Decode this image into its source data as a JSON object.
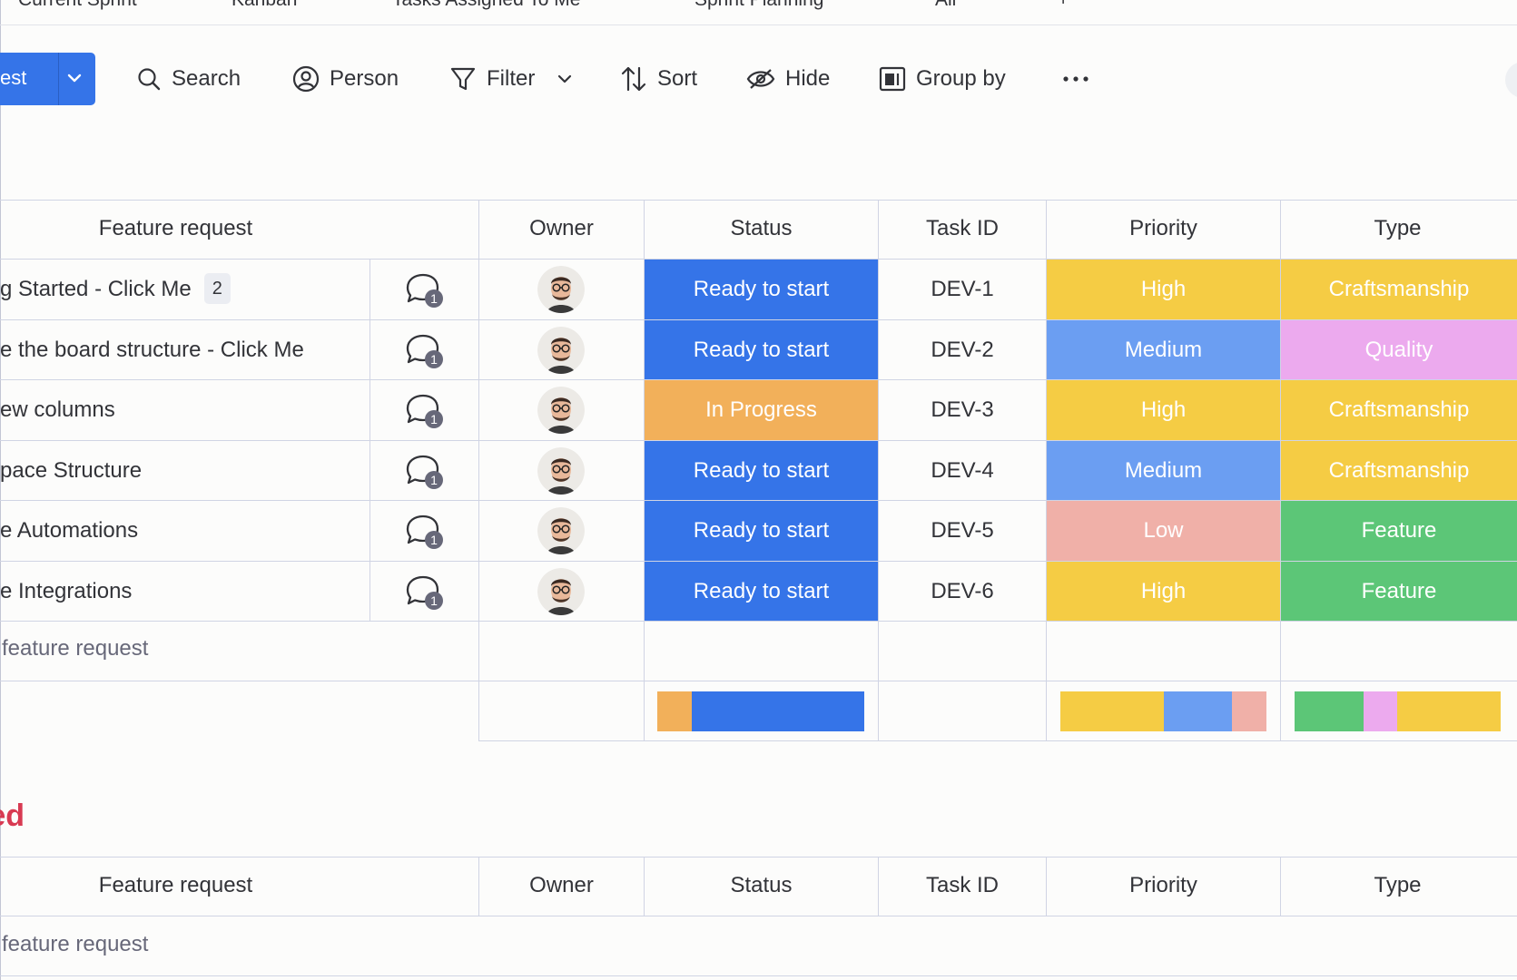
{
  "view_tabs": [
    "Current Sprint",
    "Kanban",
    "Tasks Assigned To Me",
    "Sprint Planning",
    "All",
    "+"
  ],
  "toolbar": {
    "new_item_label": "est",
    "search": "Search",
    "person": "Person",
    "filter": "Filter",
    "sort": "Sort",
    "hide": "Hide",
    "group_by": "Group by"
  },
  "columns": [
    "Feature request",
    "Owner",
    "Status",
    "Task ID",
    "Priority",
    "Type"
  ],
  "colors": {
    "ready": "#3574e8",
    "in_progress": "#f2b05a",
    "high": "#f5cc44",
    "medium": "#6b9ef2",
    "low": "#f0b0a8",
    "craftsmanship": "#f5cc44",
    "quality": "#ecaaee",
    "feature": "#5cc677"
  },
  "rows": [
    {
      "name": "g Started - Click Me",
      "subitems": "2",
      "updates": "1",
      "status": "Ready to start",
      "task_id": "DEV-1",
      "priority": "High",
      "type": "Craftsmanship"
    },
    {
      "name": "e the board structure - Click Me",
      "updates": "1",
      "status": "Ready to start",
      "task_id": "DEV-2",
      "priority": "Medium",
      "type": "Quality"
    },
    {
      "name": "ew columns",
      "updates": "1",
      "status": "In Progress",
      "task_id": "DEV-3",
      "priority": "High",
      "type": "Craftsmanship"
    },
    {
      "name": "pace Structure",
      "updates": "1",
      "status": "Ready to start",
      "task_id": "DEV-4",
      "priority": "Medium",
      "type": "Craftsmanship"
    },
    {
      "name": "e Automations",
      "updates": "1",
      "status": "Ready to start",
      "task_id": "DEV-5",
      "priority": "Low",
      "type": "Feature"
    },
    {
      "name": "e Integrations",
      "updates": "1",
      "status": "Ready to start",
      "task_id": "DEV-6",
      "priority": "High",
      "type": "Feature"
    }
  ],
  "add_item": "feature request",
  "summary": {
    "status": [
      {
        "label": "In Progress",
        "fraction": 0.1667
      },
      {
        "label": "Ready to start",
        "fraction": 0.8333
      }
    ],
    "priority": [
      {
        "label": "High",
        "fraction": 0.5
      },
      {
        "label": "Medium",
        "fraction": 0.3333
      },
      {
        "label": "Low",
        "fraction": 0.1667
      }
    ],
    "type": [
      {
        "label": "Feature",
        "fraction": 0.3333
      },
      {
        "label": "Quality",
        "fraction": 0.1667
      },
      {
        "label": "Craftsmanship",
        "fraction": 0.5
      }
    ]
  },
  "group2": {
    "title": "ted",
    "add_item": "feature request"
  }
}
